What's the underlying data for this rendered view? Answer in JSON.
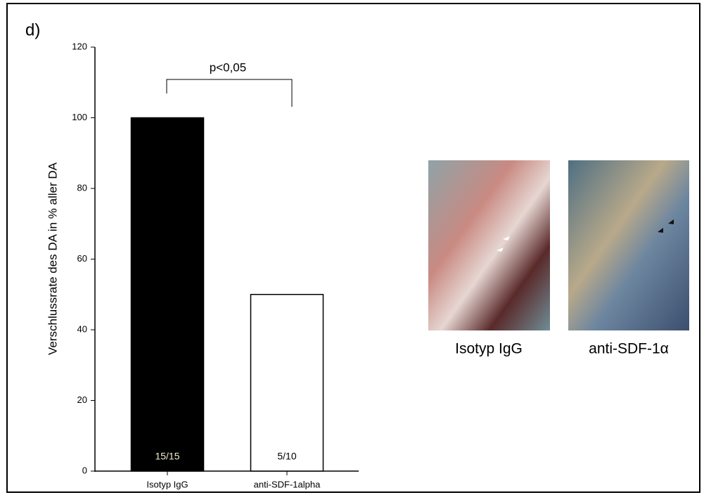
{
  "chart_data": {
    "type": "bar",
    "panel_label": "d)",
    "y_label": "Verschlussrate des DA in % aller DA",
    "categories": [
      "Isotyp IgG",
      "anti-SDF-1alpha"
    ],
    "values": [
      100,
      50
    ],
    "colors": [
      "#000000",
      "#ffffff"
    ],
    "bar_annotations": [
      "15/15",
      "5/10"
    ],
    "ylim": [
      0,
      120
    ],
    "yticks": [
      0,
      20,
      40,
      60,
      80,
      100,
      120
    ],
    "significance": "p<0,05",
    "image_captions": [
      "Isotyp IgG",
      "anti-SDF-1α"
    ]
  }
}
